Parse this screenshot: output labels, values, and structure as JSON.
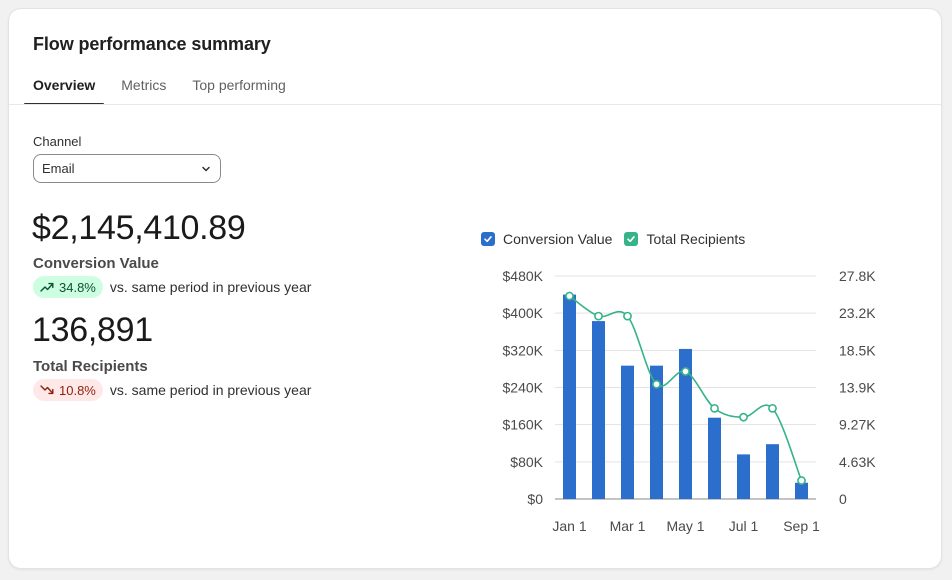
{
  "title": "Flow performance summary",
  "tabs": [
    {
      "label": "Overview",
      "active": true
    },
    {
      "label": "Metrics",
      "active": false
    },
    {
      "label": "Top performing",
      "active": false
    }
  ],
  "channel": {
    "label": "Channel",
    "value": "Email"
  },
  "metrics": [
    {
      "value": "$2,145,410.89",
      "label": "Conversion Value",
      "change": "34.8%",
      "direction": "up",
      "comparison": "vs. same period in previous year"
    },
    {
      "value": "136,891",
      "label": "Total Recipients",
      "change": "10.8%",
      "direction": "down",
      "comparison": "vs. same period in previous year"
    }
  ],
  "colors": {
    "bar": "#2c6ecb",
    "line": "#36b38a",
    "up_badge": "#cdfee1",
    "down_badge": "#fee9e8"
  },
  "chart_data": {
    "type": "bar",
    "legend_placement": "top",
    "series": [
      {
        "name": "Conversion Value",
        "type": "bar",
        "axis": "left",
        "checked": true,
        "values": [
          440000,
          383000,
          287000,
          287000,
          323000,
          175000,
          96000,
          118000,
          35000
        ]
      },
      {
        "name": "Total Recipients",
        "type": "line",
        "axis": "right",
        "checked": true,
        "values": [
          25300,
          22800,
          22800,
          14300,
          15900,
          11300,
          10200,
          11300,
          2300
        ]
      }
    ],
    "x_tick_labels": [
      "Jan 1",
      "Mar 1",
      "May 1",
      "Jul 1",
      "Sep 1"
    ],
    "y_left": {
      "ticks": [
        "$0",
        "$80K",
        "$160K",
        "$240K",
        "$320K",
        "$400K",
        "$480K"
      ],
      "min": 0,
      "max": 480000
    },
    "y_right": {
      "ticks": [
        "0",
        "4.63K",
        "9.27K",
        "13.9K",
        "18.5K",
        "23.2K",
        "27.8K"
      ],
      "min": 0,
      "max": 27800
    },
    "grid": true
  }
}
